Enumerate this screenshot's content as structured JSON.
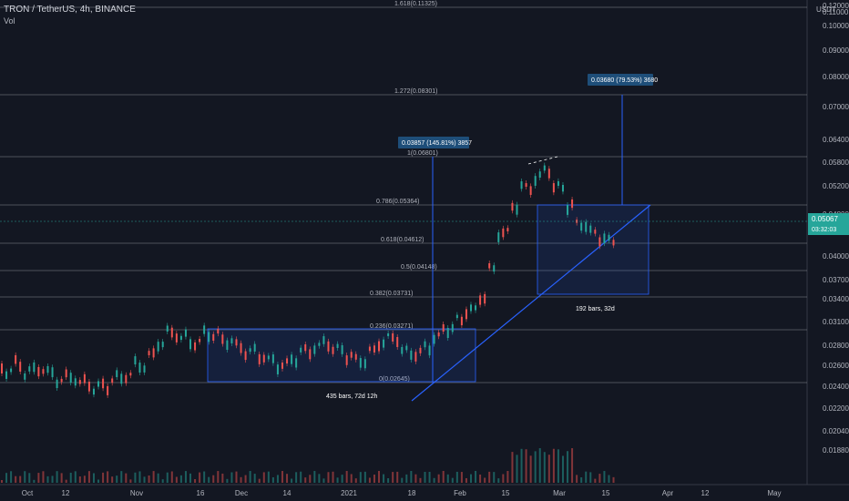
{
  "header": {
    "symbol_line": "TRON / TetherUS, 4h, BINANCE",
    "volume_label": "Vol",
    "currency": "USDT"
  },
  "chart_data": {
    "type": "candlestick",
    "price_axis": {
      "ticks": [
        "0.12000",
        "0.11000",
        "0.10000",
        "0.09000",
        "0.08000",
        "0.07000",
        "0.06400",
        "0.05800",
        "0.05200",
        "0.04800",
        "0.04400",
        "0.04000",
        "0.03700",
        "0.03400",
        "0.03100",
        "0.02800",
        "0.02600",
        "0.02400",
        "0.02200",
        "0.02040",
        "0.01880"
      ]
    },
    "time_axis": {
      "labels": [
        "Oct",
        "12",
        "Nov",
        "16",
        "Dec",
        "14",
        "2021",
        "18",
        "Feb",
        "15",
        "Mar",
        "15",
        "Apr",
        "12",
        "May"
      ]
    },
    "last_price": {
      "value": "0.05067",
      "countdown": "03:32:03"
    },
    "fib_levels": [
      {
        "label": "1.618(0.11325)",
        "value": 0.11325
      },
      {
        "label": "1.272(0.08301)",
        "value": 0.08301
      },
      {
        "label": "1(0.06801)",
        "value": 0.06801
      },
      {
        "label": "0.786(0.05364)",
        "value": 0.05364
      },
      {
        "label": "0.618(0.04612)",
        "value": 0.04612
      },
      {
        "label": "0.5(0.04148)",
        "value": 0.04148
      },
      {
        "label": "0.382(0.03731)",
        "value": 0.03731
      },
      {
        "label": "0.236(0.03271)",
        "value": 0.03271
      },
      {
        "label": "0(0.02645)",
        "value": 0.02645
      }
    ],
    "annotations": [
      {
        "text": "0.03857 (145.81%) 3857"
      },
      {
        "text": "0.03680 (79.53%) 3680"
      },
      {
        "text": "435 bars, 72d 12h"
      },
      {
        "text": "192 bars, 32d"
      }
    ],
    "colors": {
      "up": "#26a69a",
      "down": "#ef5350",
      "background": "#131722",
      "range_box": "#2962ff",
      "price_tag": "#26a69a"
    }
  }
}
